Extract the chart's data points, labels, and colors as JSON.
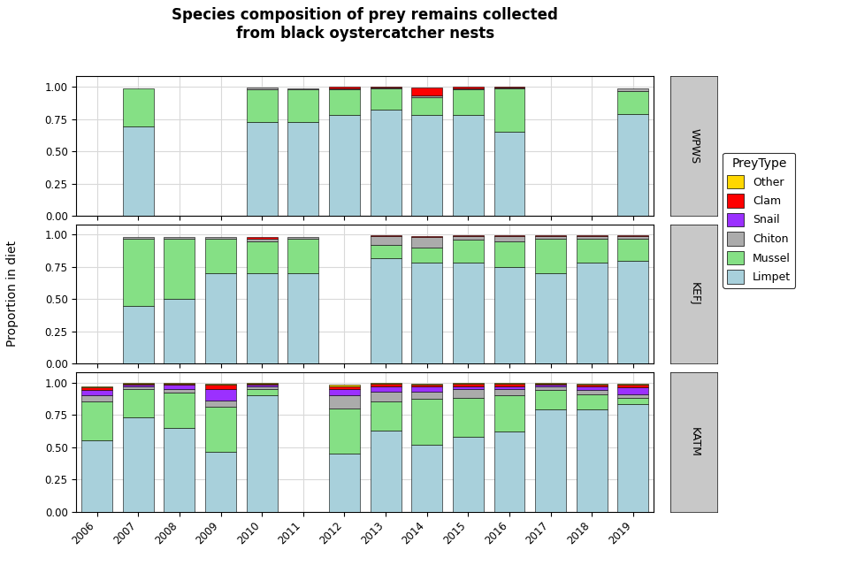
{
  "title": "Species composition of prey remains collected\nfrom black oystercatcher nests",
  "ylabel": "Proportion in diet",
  "locations": [
    "WPWS",
    "KEFJ",
    "KATM"
  ],
  "years": [
    2006,
    2007,
    2008,
    2009,
    2010,
    2011,
    2012,
    2013,
    2014,
    2015,
    2016,
    2017,
    2018,
    2019
  ],
  "prey_types": [
    "Limpet",
    "Mussel",
    "Chiton",
    "Snail",
    "Clam",
    "Other"
  ],
  "colors": {
    "Limpet": "#A8D0DB",
    "Mussel": "#85E085",
    "Chiton": "#ABABAB",
    "Snail": "#9B30FF",
    "Clam": "#FF0000",
    "Other": "#FFD700"
  },
  "data": {
    "WPWS": {
      "2006": {
        "Limpet": 0.0,
        "Mussel": 0.0,
        "Chiton": 0.0,
        "Snail": 0.0,
        "Clam": 0.0,
        "Other": 0.0
      },
      "2007": {
        "Limpet": 0.69,
        "Mussel": 0.3,
        "Chiton": 0.0,
        "Snail": 0.0,
        "Clam": 0.0,
        "Other": 0.0
      },
      "2008": {
        "Limpet": 0.0,
        "Mussel": 0.0,
        "Chiton": 0.0,
        "Snail": 0.0,
        "Clam": 0.0,
        "Other": 0.0
      },
      "2009": {
        "Limpet": 0.0,
        "Mussel": 0.0,
        "Chiton": 0.0,
        "Snail": 0.0,
        "Clam": 0.0,
        "Other": 0.0
      },
      "2010": {
        "Limpet": 0.73,
        "Mussel": 0.25,
        "Chiton": 0.015,
        "Snail": 0.0,
        "Clam": 0.0,
        "Other": 0.0
      },
      "2011": {
        "Limpet": 0.73,
        "Mussel": 0.25,
        "Chiton": 0.01,
        "Snail": 0.0,
        "Clam": 0.0,
        "Other": 0.0
      },
      "2012": {
        "Limpet": 0.78,
        "Mussel": 0.2,
        "Chiton": 0.01,
        "Snail": 0.0,
        "Clam": 0.01,
        "Other": 0.0
      },
      "2013": {
        "Limpet": 0.82,
        "Mussel": 0.17,
        "Chiton": 0.005,
        "Snail": 0.0,
        "Clam": 0.005,
        "Other": 0.0
      },
      "2014": {
        "Limpet": 0.78,
        "Mussel": 0.14,
        "Chiton": 0.015,
        "Snail": 0.0,
        "Clam": 0.06,
        "Other": 0.0
      },
      "2015": {
        "Limpet": 0.78,
        "Mussel": 0.2,
        "Chiton": 0.01,
        "Snail": 0.0,
        "Clam": 0.01,
        "Other": 0.0
      },
      "2016": {
        "Limpet": 0.65,
        "Mussel": 0.34,
        "Chiton": 0.005,
        "Snail": 0.0,
        "Clam": 0.005,
        "Other": 0.0
      },
      "2017": {
        "Limpet": 0.0,
        "Mussel": 0.0,
        "Chiton": 0.0,
        "Snail": 0.0,
        "Clam": 0.0,
        "Other": 0.0
      },
      "2018": {
        "Limpet": 0.0,
        "Mussel": 0.0,
        "Chiton": 0.0,
        "Snail": 0.0,
        "Clam": 0.0,
        "Other": 0.0
      },
      "2019": {
        "Limpet": 0.79,
        "Mussel": 0.18,
        "Chiton": 0.02,
        "Snail": 0.0,
        "Clam": 0.0,
        "Other": 0.0
      }
    },
    "KEFJ": {
      "2006": {
        "Limpet": 0.0,
        "Mussel": 0.0,
        "Chiton": 0.0,
        "Snail": 0.0,
        "Clam": 0.0,
        "Other": 0.0
      },
      "2007": {
        "Limpet": 0.45,
        "Mussel": 0.52,
        "Chiton": 0.015,
        "Snail": 0.0,
        "Clam": 0.0,
        "Other": 0.0
      },
      "2008": {
        "Limpet": 0.5,
        "Mussel": 0.47,
        "Chiton": 0.015,
        "Snail": 0.0,
        "Clam": 0.0,
        "Other": 0.0
      },
      "2009": {
        "Limpet": 0.7,
        "Mussel": 0.27,
        "Chiton": 0.015,
        "Snail": 0.0,
        "Clam": 0.0,
        "Other": 0.0
      },
      "2010": {
        "Limpet": 0.7,
        "Mussel": 0.25,
        "Chiton": 0.015,
        "Snail": 0.0,
        "Clam": 0.02,
        "Other": 0.0
      },
      "2011": {
        "Limpet": 0.7,
        "Mussel": 0.27,
        "Chiton": 0.015,
        "Snail": 0.0,
        "Clam": 0.0,
        "Other": 0.0
      },
      "2012": {
        "Limpet": 0.0,
        "Mussel": 0.0,
        "Chiton": 0.0,
        "Snail": 0.0,
        "Clam": 0.0,
        "Other": 0.0
      },
      "2013": {
        "Limpet": 0.82,
        "Mussel": 0.1,
        "Chiton": 0.07,
        "Snail": 0.0,
        "Clam": 0.005,
        "Other": 0.0
      },
      "2014": {
        "Limpet": 0.78,
        "Mussel": 0.12,
        "Chiton": 0.08,
        "Snail": 0.0,
        "Clam": 0.01,
        "Other": 0.0
      },
      "2015": {
        "Limpet": 0.78,
        "Mussel": 0.18,
        "Chiton": 0.03,
        "Snail": 0.0,
        "Clam": 0.005,
        "Other": 0.0
      },
      "2016": {
        "Limpet": 0.75,
        "Mussel": 0.2,
        "Chiton": 0.04,
        "Snail": 0.0,
        "Clam": 0.005,
        "Other": 0.0
      },
      "2017": {
        "Limpet": 0.7,
        "Mussel": 0.27,
        "Chiton": 0.02,
        "Snail": 0.0,
        "Clam": 0.005,
        "Other": 0.0
      },
      "2018": {
        "Limpet": 0.78,
        "Mussel": 0.19,
        "Chiton": 0.02,
        "Snail": 0.0,
        "Clam": 0.005,
        "Other": 0.0
      },
      "2019": {
        "Limpet": 0.8,
        "Mussel": 0.17,
        "Chiton": 0.02,
        "Snail": 0.0,
        "Clam": 0.005,
        "Other": 0.0
      }
    },
    "KATM": {
      "2006": {
        "Limpet": 0.55,
        "Mussel": 0.3,
        "Chiton": 0.05,
        "Snail": 0.04,
        "Clam": 0.02,
        "Other": 0.01
      },
      "2007": {
        "Limpet": 0.73,
        "Mussel": 0.22,
        "Chiton": 0.02,
        "Snail": 0.01,
        "Clam": 0.01,
        "Other": 0.01
      },
      "2008": {
        "Limpet": 0.65,
        "Mussel": 0.27,
        "Chiton": 0.03,
        "Snail": 0.03,
        "Clam": 0.01,
        "Other": 0.01
      },
      "2009": {
        "Limpet": 0.46,
        "Mussel": 0.35,
        "Chiton": 0.05,
        "Snail": 0.09,
        "Clam": 0.03,
        "Other": 0.01
      },
      "2010": {
        "Limpet": 0.9,
        "Mussel": 0.05,
        "Chiton": 0.02,
        "Snail": 0.01,
        "Clam": 0.01,
        "Other": 0.01
      },
      "2011": {
        "Limpet": 0.0,
        "Mussel": 0.0,
        "Chiton": 0.0,
        "Snail": 0.0,
        "Clam": 0.0,
        "Other": 0.0
      },
      "2012": {
        "Limpet": 0.45,
        "Mussel": 0.35,
        "Chiton": 0.1,
        "Snail": 0.05,
        "Clam": 0.02,
        "Other": 0.01
      },
      "2013": {
        "Limpet": 0.63,
        "Mussel": 0.22,
        "Chiton": 0.08,
        "Snail": 0.04,
        "Clam": 0.02,
        "Other": 0.01
      },
      "2014": {
        "Limpet": 0.52,
        "Mussel": 0.35,
        "Chiton": 0.06,
        "Snail": 0.04,
        "Clam": 0.01,
        "Other": 0.01
      },
      "2015": {
        "Limpet": 0.58,
        "Mussel": 0.3,
        "Chiton": 0.07,
        "Snail": 0.02,
        "Clam": 0.02,
        "Other": 0.01
      },
      "2016": {
        "Limpet": 0.62,
        "Mussel": 0.28,
        "Chiton": 0.05,
        "Snail": 0.02,
        "Clam": 0.02,
        "Other": 0.01
      },
      "2017": {
        "Limpet": 0.79,
        "Mussel": 0.15,
        "Chiton": 0.03,
        "Snail": 0.01,
        "Clam": 0.01,
        "Other": 0.01
      },
      "2018": {
        "Limpet": 0.79,
        "Mussel": 0.12,
        "Chiton": 0.03,
        "Snail": 0.03,
        "Clam": 0.01,
        "Other": 0.01
      },
      "2019": {
        "Limpet": 0.83,
        "Mussel": 0.05,
        "Chiton": 0.03,
        "Snail": 0.05,
        "Clam": 0.02,
        "Other": 0.01
      }
    }
  },
  "background_color": "#FFFFFF",
  "panel_bg": "#FFFFFF",
  "strip_color": "#C8C8C8",
  "grid_color": "#D9D9D9"
}
